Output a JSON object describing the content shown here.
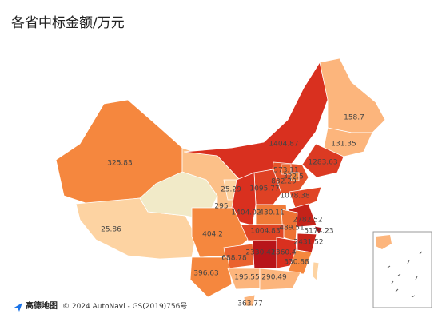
{
  "title": "各省中标金额/万元",
  "attribution": {
    "logo": "高德地图",
    "text": "© 2024 AutoNavi - GS(2019)756号"
  },
  "regions": [
    {
      "value": 325.83,
      "color": "#f5873e"
    },
    {
      "value": 25.86,
      "color": "#fdd3a2"
    },
    {
      "color": "#f1eac8"
    },
    {
      "value": 295,
      "color": "#fcc088"
    },
    {
      "value": 1404.87,
      "color": "#d9301f"
    },
    {
      "value": 158.7,
      "color": "#fcb57c"
    },
    {
      "value": 131.35,
      "color": "#fcb57c"
    },
    {
      "value": 1283.63,
      "color": "#dc3a22"
    },
    {
      "value": 832.29,
      "color": "#e5532a"
    },
    {
      "value": 573.11,
      "color": "#ec6a31"
    },
    {
      "value": 322.5,
      "color": "#f5873e"
    },
    {
      "value": 1095.77,
      "color": "#df4124"
    },
    {
      "value": 1078.38,
      "color": "#e04525"
    },
    {
      "value": 25.29,
      "color": "#fdd3a2"
    },
    {
      "value": 1404.02,
      "color": "#d9301f"
    },
    {
      "value": 430.11,
      "color": "#f07a38"
    },
    {
      "value": 2782.52,
      "color": "#c42219"
    },
    {
      "value": 489.51,
      "color": "#ee7234"
    },
    {
      "value": 5174.23,
      "color": "#a50f15"
    },
    {
      "value": 2431.52,
      "color": "#c8231a"
    },
    {
      "value": 1004.83,
      "color": "#e04525"
    },
    {
      "value": 404.2,
      "color": "#f5873e"
    },
    {
      "value": 688.78,
      "color": "#ea622e"
    },
    {
      "value": 2330.42,
      "color": "#b8151a"
    },
    {
      "value": 1360.4,
      "color": "#d9301f"
    },
    {
      "value": 330.88,
      "color": "#f5873e"
    },
    {
      "value": 396.63,
      "color": "#f5873e"
    },
    {
      "value": 195.55,
      "color": "#fcb57c"
    },
    {
      "value": 290.49,
      "color": "#fcb57c"
    },
    {
      "value": 363.77,
      "color": "#fcb57c"
    },
    {
      "color": "#fdd3a2"
    }
  ]
}
